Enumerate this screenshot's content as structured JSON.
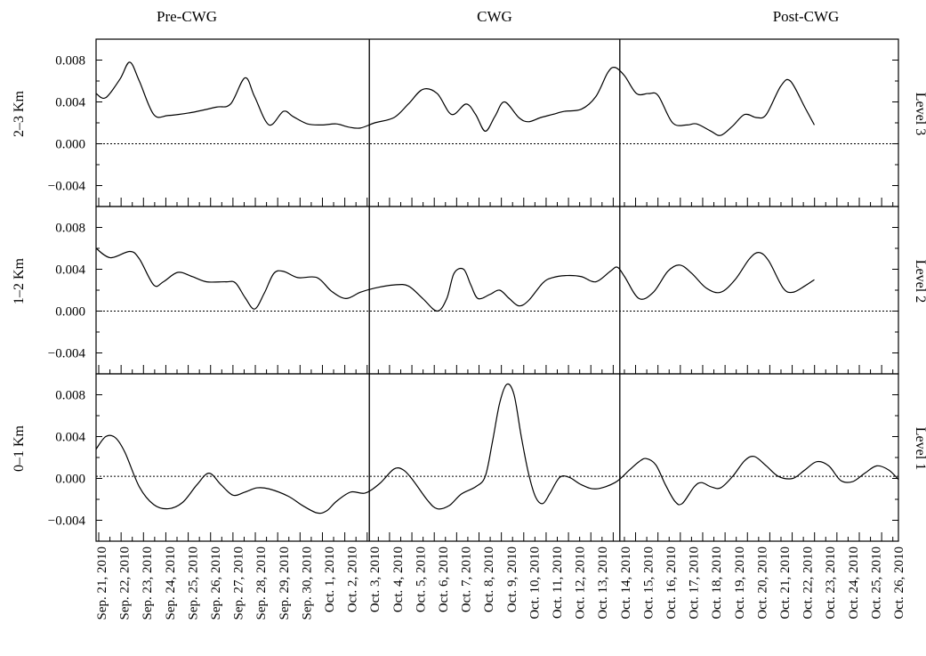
{
  "chart_data": {
    "type": "line",
    "periods": [
      "Pre-CWG",
      "CWG",
      "Post-CWG"
    ],
    "period_boundaries": [
      "Oct. 3, 2010",
      "Oct. 14, 2010"
    ],
    "x_labels": [
      "Sep. 21, 2010",
      "Sep. 22, 2010",
      "Sep. 23, 2010",
      "Sep. 24, 2010",
      "Sep. 25, 2010",
      "Sep. 26, 2010",
      "Sep. 27, 2010",
      "Sep. 28, 2010",
      "Sep. 29, 2010",
      "Sep. 30, 2010",
      "Oct. 1, 2010",
      "Oct. 2, 2010",
      "Oct. 3, 2010",
      "Oct. 4, 2010",
      "Oct. 5, 2010",
      "Oct. 6, 2010",
      "Oct. 7, 2010",
      "Oct. 8, 2010",
      "Oct. 9, 2010",
      "Oct. 10, 2010",
      "Oct. 11, 2010",
      "Oct. 12, 2010",
      "Oct. 13, 2010",
      "Oct. 14, 2010",
      "Oct. 15, 2010",
      "Oct. 16, 2010",
      "Oct. 17, 2010",
      "Oct. 18, 2010",
      "Oct. 19, 2010",
      "Oct. 20, 2010",
      "Oct. 21, 2010",
      "Oct. 22, 2010",
      "Oct. 23, 2010",
      "Oct. 24, 2010",
      "Oct. 25, 2010",
      "Oct. 26, 2010"
    ],
    "ylim": [
      -0.006,
      0.01
    ],
    "yticks": [
      "0.008",
      "0.004",
      "0.000",
      "−0.004"
    ],
    "panels": [
      {
        "ylabel": "2–3 Km",
        "right_label": "Level 3",
        "ylim": [
          -0.006,
          0.01
        ],
        "reference_line": 0.0,
        "points": [
          [
            0.0,
            0.0048
          ],
          [
            0.4,
            0.0044
          ],
          [
            1.0,
            0.0062
          ],
          [
            1.4,
            0.0078
          ],
          [
            1.8,
            0.006
          ],
          [
            2.4,
            0.0028
          ],
          [
            3.0,
            0.0027
          ],
          [
            4.0,
            0.003
          ],
          [
            5.0,
            0.0035
          ],
          [
            5.6,
            0.0038
          ],
          [
            6.2,
            0.0063
          ],
          [
            6.6,
            0.0045
          ],
          [
            7.2,
            0.0018
          ],
          [
            7.8,
            0.0031
          ],
          [
            8.2,
            0.0026
          ],
          [
            8.8,
            0.0019
          ],
          [
            9.4,
            0.0018
          ],
          [
            10.0,
            0.0019
          ],
          [
            10.5,
            0.0016
          ],
          [
            11.0,
            0.0015
          ],
          [
            11.6,
            0.002
          ],
          [
            12.4,
            0.0025
          ],
          [
            13.0,
            0.0038
          ],
          [
            13.6,
            0.0052
          ],
          [
            14.2,
            0.0048
          ],
          [
            14.8,
            0.0028
          ],
          [
            15.4,
            0.0038
          ],
          [
            15.8,
            0.0028
          ],
          [
            16.2,
            0.0012
          ],
          [
            16.6,
            0.0026
          ],
          [
            17.0,
            0.004
          ],
          [
            17.6,
            0.0025
          ],
          [
            18.0,
            0.0021
          ],
          [
            18.5,
            0.0025
          ],
          [
            19.0,
            0.0028
          ],
          [
            19.5,
            0.0031
          ],
          [
            20.2,
            0.0033
          ],
          [
            20.8,
            0.0045
          ],
          [
            21.3,
            0.0068
          ],
          [
            21.6,
            0.0073
          ],
          [
            22.0,
            0.0065
          ],
          [
            22.5,
            0.0048
          ],
          [
            23.0,
            0.0048
          ],
          [
            23.4,
            0.0046
          ],
          [
            24.0,
            0.002
          ],
          [
            24.6,
            0.0018
          ],
          [
            25.0,
            0.0019
          ],
          [
            25.6,
            0.0012
          ],
          [
            26.0,
            0.0008
          ],
          [
            26.5,
            0.0017
          ],
          [
            27.0,
            0.0028
          ],
          [
            27.5,
            0.0025
          ],
          [
            27.9,
            0.0028
          ],
          [
            28.5,
            0.0055
          ],
          [
            28.9,
            0.006
          ],
          [
            29.5,
            0.0035
          ],
          [
            29.9,
            0.0018
          ]
        ]
      },
      {
        "ylabel": "1–2 Km",
        "right_label": "Level 2",
        "ylim": [
          -0.006,
          0.01
        ],
        "reference_line": 0.0,
        "points": [
          [
            0.0,
            0.006
          ],
          [
            0.6,
            0.0051
          ],
          [
            1.4,
            0.0057
          ],
          [
            1.8,
            0.005
          ],
          [
            2.4,
            0.0025
          ],
          [
            2.8,
            0.0028
          ],
          [
            3.4,
            0.0037
          ],
          [
            4.0,
            0.0033
          ],
          [
            4.6,
            0.0028
          ],
          [
            5.4,
            0.0028
          ],
          [
            5.8,
            0.0027
          ],
          [
            6.2,
            0.0013
          ],
          [
            6.6,
            0.0002
          ],
          [
            7.0,
            0.0017
          ],
          [
            7.4,
            0.0036
          ],
          [
            7.8,
            0.0038
          ],
          [
            8.4,
            0.0032
          ],
          [
            9.2,
            0.0032
          ],
          [
            9.8,
            0.0019
          ],
          [
            10.4,
            0.0012
          ],
          [
            11.0,
            0.0018
          ],
          [
            11.6,
            0.0022
          ],
          [
            12.4,
            0.0025
          ],
          [
            13.0,
            0.0024
          ],
          [
            13.6,
            0.0012
          ],
          [
            14.2,
            0.0
          ],
          [
            14.6,
            0.0012
          ],
          [
            14.9,
            0.0036
          ],
          [
            15.3,
            0.004
          ],
          [
            15.6,
            0.0025
          ],
          [
            15.9,
            0.0012
          ],
          [
            16.4,
            0.0016
          ],
          [
            16.8,
            0.002
          ],
          [
            17.2,
            0.0012
          ],
          [
            17.6,
            0.0005
          ],
          [
            18.0,
            0.001
          ],
          [
            18.6,
            0.0027
          ],
          [
            19.0,
            0.0032
          ],
          [
            19.6,
            0.0034
          ],
          [
            20.2,
            0.0033
          ],
          [
            20.8,
            0.0028
          ],
          [
            21.4,
            0.0038
          ],
          [
            21.7,
            0.0042
          ],
          [
            22.0,
            0.0033
          ],
          [
            22.6,
            0.0012
          ],
          [
            23.2,
            0.0018
          ],
          [
            23.8,
            0.0038
          ],
          [
            24.3,
            0.0044
          ],
          [
            24.8,
            0.0036
          ],
          [
            25.4,
            0.0022
          ],
          [
            26.0,
            0.0018
          ],
          [
            26.6,
            0.003
          ],
          [
            27.2,
            0.005
          ],
          [
            27.6,
            0.0056
          ],
          [
            28.0,
            0.0048
          ],
          [
            28.6,
            0.0022
          ],
          [
            29.0,
            0.0018
          ],
          [
            29.5,
            0.0024
          ],
          [
            29.9,
            0.003
          ]
        ]
      },
      {
        "ylabel": "0–1 Km",
        "right_label": "Level 1",
        "ylim": [
          -0.006,
          0.01
        ],
        "reference_line": 0.0002,
        "points": [
          [
            0.0,
            0.0028
          ],
          [
            0.4,
            0.004
          ],
          [
            0.8,
            0.0039
          ],
          [
            1.2,
            0.0025
          ],
          [
            1.8,
            -0.0008
          ],
          [
            2.4,
            -0.0025
          ],
          [
            3.0,
            -0.0029
          ],
          [
            3.6,
            -0.0023
          ],
          [
            4.2,
            -0.0006
          ],
          [
            4.7,
            0.0005
          ],
          [
            5.2,
            -0.0006
          ],
          [
            5.7,
            -0.0016
          ],
          [
            6.2,
            -0.0013
          ],
          [
            6.7,
            -0.0009
          ],
          [
            7.2,
            -0.001
          ],
          [
            8.0,
            -0.0017
          ],
          [
            8.6,
            -0.0026
          ],
          [
            9.2,
            -0.0033
          ],
          [
            9.6,
            -0.0031
          ],
          [
            10.0,
            -0.0022
          ],
          [
            10.6,
            -0.0013
          ],
          [
            11.2,
            -0.0014
          ],
          [
            11.8,
            -0.0005
          ],
          [
            12.4,
            0.0009
          ],
          [
            12.8,
            0.0008
          ],
          [
            13.2,
            -0.0002
          ],
          [
            13.8,
            -0.0021
          ],
          [
            14.2,
            -0.0029
          ],
          [
            14.7,
            -0.0026
          ],
          [
            15.2,
            -0.0015
          ],
          [
            15.8,
            -0.0008
          ],
          [
            16.2,
            0.0002
          ],
          [
            16.5,
            0.0035
          ],
          [
            16.8,
            0.0072
          ],
          [
            17.1,
            0.009
          ],
          [
            17.4,
            0.008
          ],
          [
            17.7,
            0.004
          ],
          [
            18.0,
            0.0005
          ],
          [
            18.3,
            -0.0018
          ],
          [
            18.6,
            -0.0024
          ],
          [
            18.9,
            -0.0014
          ],
          [
            19.3,
            0.0001
          ],
          [
            19.7,
            0.0001
          ],
          [
            20.2,
            -0.0006
          ],
          [
            20.8,
            -0.001
          ],
          [
            21.6,
            -0.0004
          ],
          [
            22.2,
            0.0008
          ],
          [
            22.6,
            0.0016
          ],
          [
            22.9,
            0.0019
          ],
          [
            23.3,
            0.0013
          ],
          [
            23.7,
            -0.0006
          ],
          [
            24.1,
            -0.0022
          ],
          [
            24.4,
            -0.0024
          ],
          [
            24.9,
            -0.0008
          ],
          [
            25.2,
            -0.0004
          ],
          [
            25.6,
            -0.0008
          ],
          [
            26.0,
            -0.0009
          ],
          [
            26.5,
            0.0002
          ],
          [
            27.0,
            0.0017
          ],
          [
            27.4,
            0.0021
          ],
          [
            27.9,
            0.0012
          ],
          [
            28.4,
            0.0002
          ],
          [
            29.0,
            0.0
          ],
          [
            29.5,
            0.0008
          ],
          [
            30.0,
            0.0016
          ],
          [
            30.5,
            0.0012
          ],
          [
            31.0,
            -0.0002
          ],
          [
            31.5,
            -0.0003
          ],
          [
            32.0,
            0.0005
          ],
          [
            32.5,
            0.0012
          ],
          [
            33.0,
            0.0008
          ],
          [
            33.4,
            -0.0001
          ]
        ]
      }
    ],
    "x_range": [
      0,
      33.4
    ]
  }
}
